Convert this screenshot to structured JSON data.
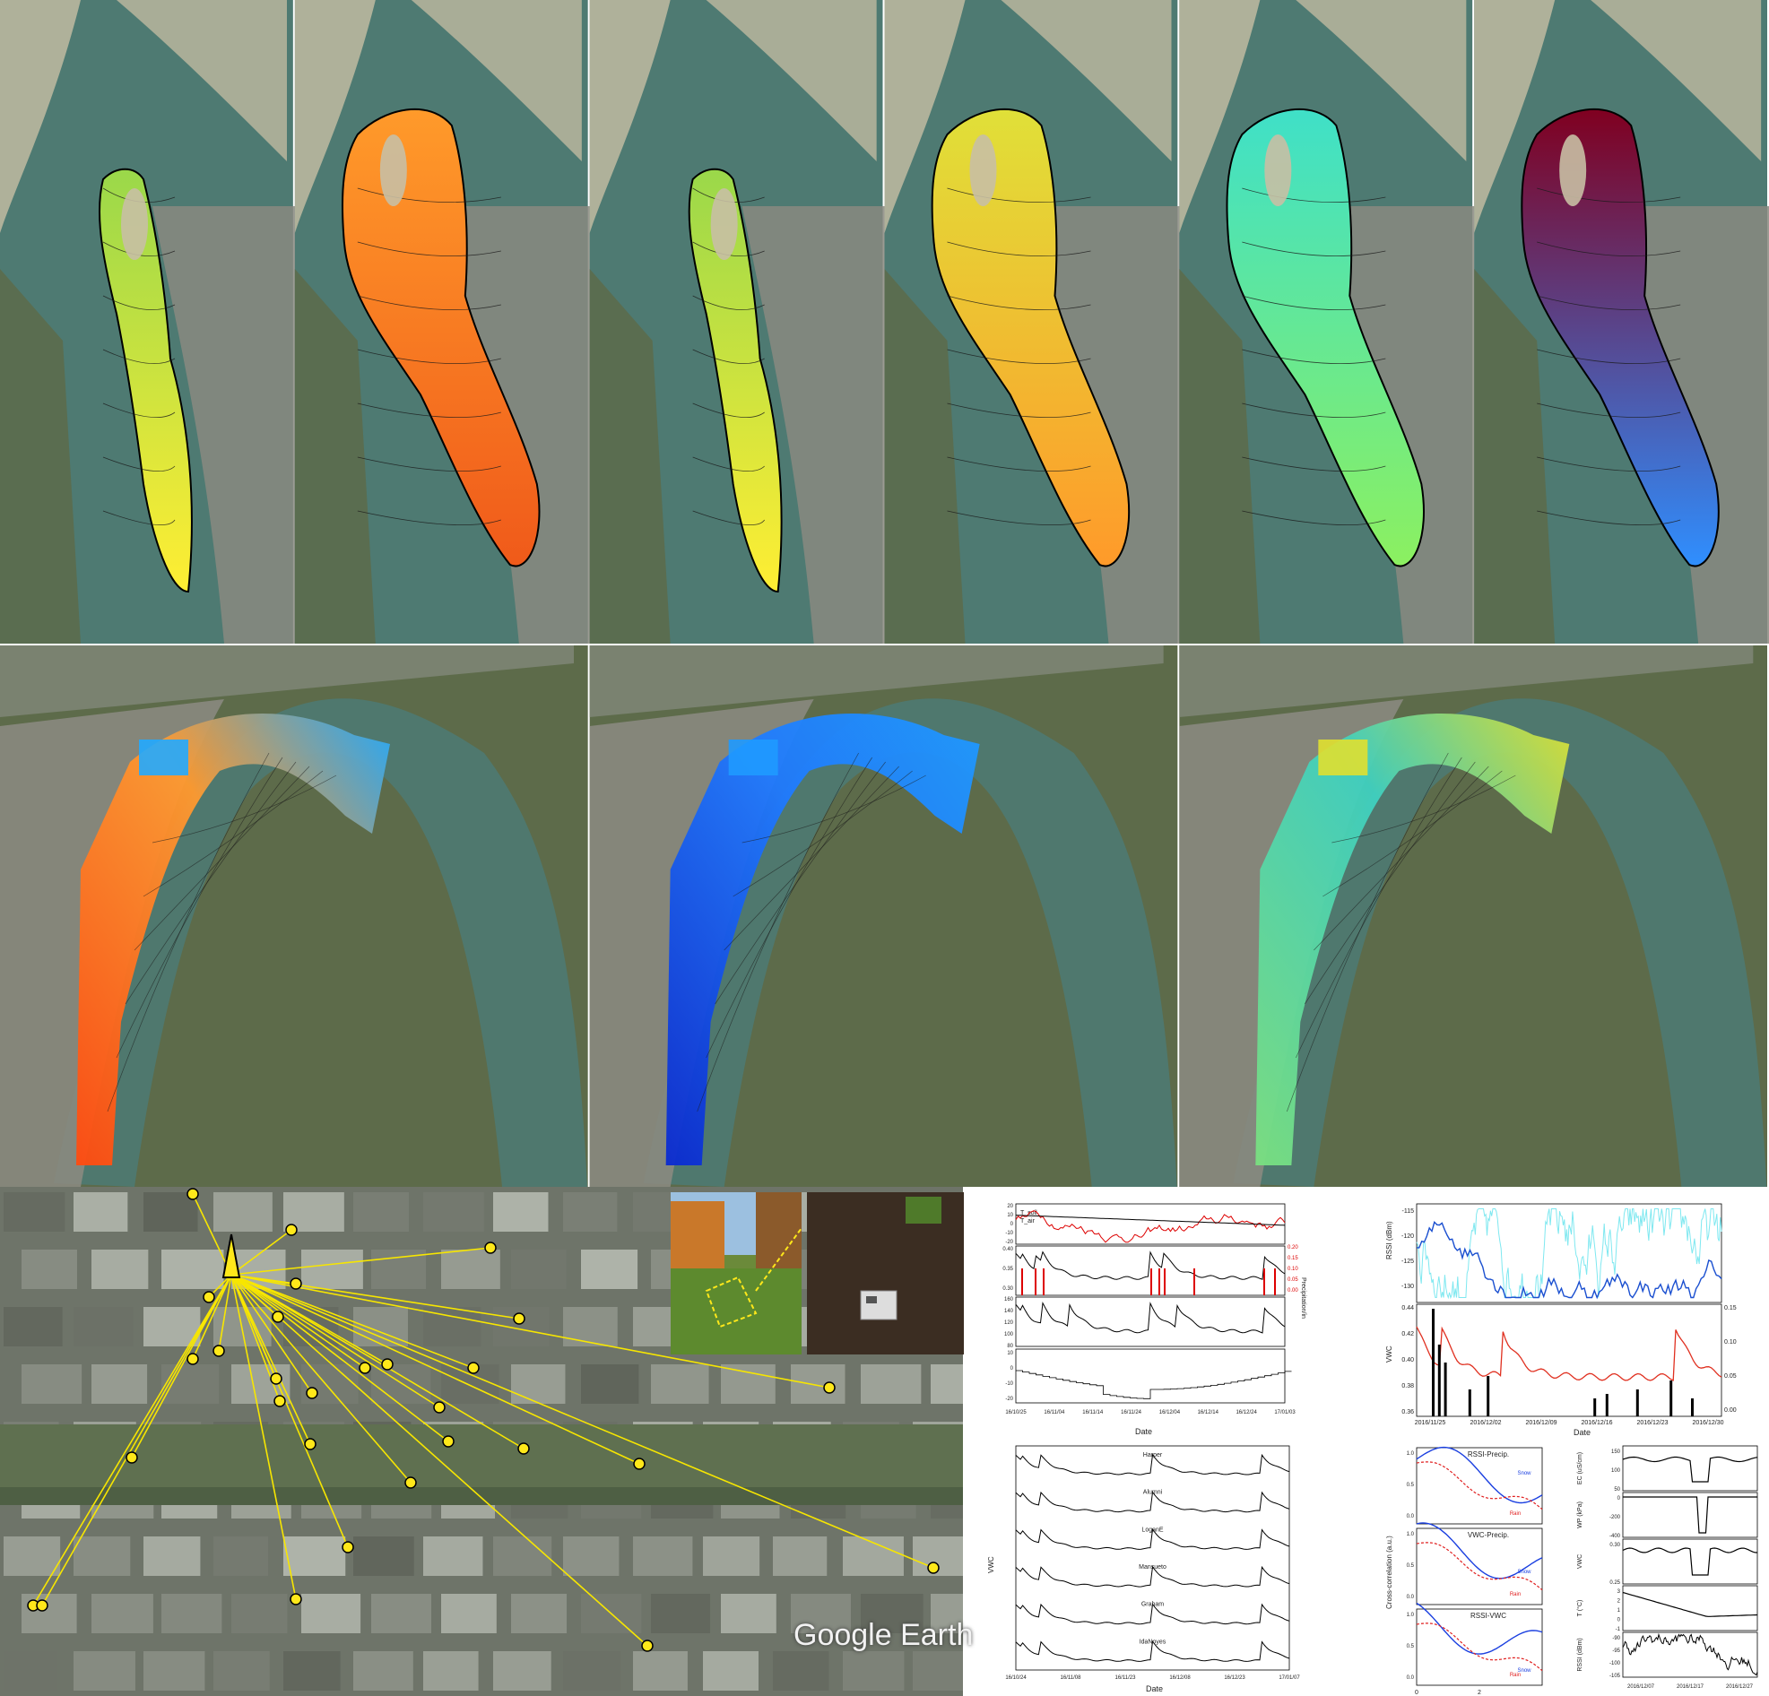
{
  "figure": {
    "top_row_panels": 6,
    "middle_row_panels": 3,
    "colors": {
      "water": "#4e7a72",
      "sand": "#c8bfa4",
      "vegetation": "#5d6b4a",
      "urban": "#8a8a80",
      "contour": "#1a1a1a",
      "link": "#f7e600",
      "node": "#ffe81a"
    }
  },
  "google_earth": {
    "watermark": "Google Earth"
  },
  "chart_a": {
    "legend": [
      "T_soil",
      "T_air"
    ],
    "right_label": "Precipitation/in",
    "xlabel": "Date",
    "x_ticks": [
      "16/10/25",
      "16/11/04",
      "16/11/14",
      "16/11/24",
      "16/12/04",
      "16/12/14",
      "16/12/24",
      "17/01/03"
    ],
    "p1_y_ticks": [
      "20",
      "10",
      "0",
      "-10",
      "-20"
    ],
    "p2_y_ticks": [
      "0.40",
      "0.35",
      "0.30"
    ],
    "p2_r_ticks": [
      "0.20",
      "0.15",
      "0.10",
      "0.05",
      "0.00"
    ],
    "p3_y_ticks": [
      "160",
      "140",
      "120",
      "100",
      "80"
    ],
    "p4_y_ticks": [
      "10",
      "0",
      "-10",
      "-20"
    ]
  },
  "chart_b": {
    "ylabel_top": "RSSI (dBm)",
    "top_y_ticks": [
      "-115",
      "-120",
      "-125",
      "-130"
    ],
    "ylabel_bottom": "VWC",
    "bottom_y_ticks": [
      "0.44",
      "0.42",
      "0.40",
      "0.38",
      "0.36"
    ],
    "bottom_r_ticks": [
      "0.15",
      "0.10",
      "0.05",
      "0.00"
    ],
    "x_ticks": [
      "2016/11/25",
      "2016/12/02",
      "2016/12/09",
      "2016/12/16",
      "2016/12/23",
      "2016/12/30"
    ],
    "xlabel": "Date"
  },
  "chart_c": {
    "ylabel": "VWC",
    "series_labels": [
      "Harper",
      "Alumni",
      "LoganE",
      "Mansueto",
      "Graham",
      "IdaNoyes"
    ],
    "x_ticks": [
      "16/10/24",
      "16/11/08",
      "16/11/23",
      "16/12/08",
      "16/12/23",
      "17/01/07"
    ],
    "xlabel": "Date"
  },
  "chart_d": {
    "ylabel": "Cross-correlation (a.u.)",
    "y_ticks": [
      "1.0",
      "0.5",
      "0.0"
    ],
    "x_ticks": [
      "0",
      "2"
    ],
    "panels": [
      {
        "title": "RSSI-Precip.",
        "snow": "Snow",
        "rain": "Rain"
      },
      {
        "title": "VWC-Precip.",
        "snow": "Snow",
        "rain": "Rain"
      },
      {
        "title": "RSSI-VWC",
        "snow": "Snow",
        "rain": "Rain"
      }
    ]
  },
  "chart_e": {
    "labels": [
      "EC (uS/cm)",
      "WP (kPa)",
      "VWC",
      "T (°C)",
      "RSSI (dBm)"
    ],
    "ec_ticks": [
      "150",
      "100",
      "50"
    ],
    "wp_ticks": [
      "0",
      "-200",
      "-400"
    ],
    "vwc_ticks": [
      "0.30",
      "0.25"
    ],
    "t_ticks": [
      "3",
      "2",
      "1",
      "0",
      "-1"
    ],
    "rssi_ticks": [
      "-90",
      "-95",
      "-100",
      "-105"
    ],
    "x_ticks": [
      "2016/12/07",
      "2016/12/17",
      "2016/12/27"
    ]
  }
}
